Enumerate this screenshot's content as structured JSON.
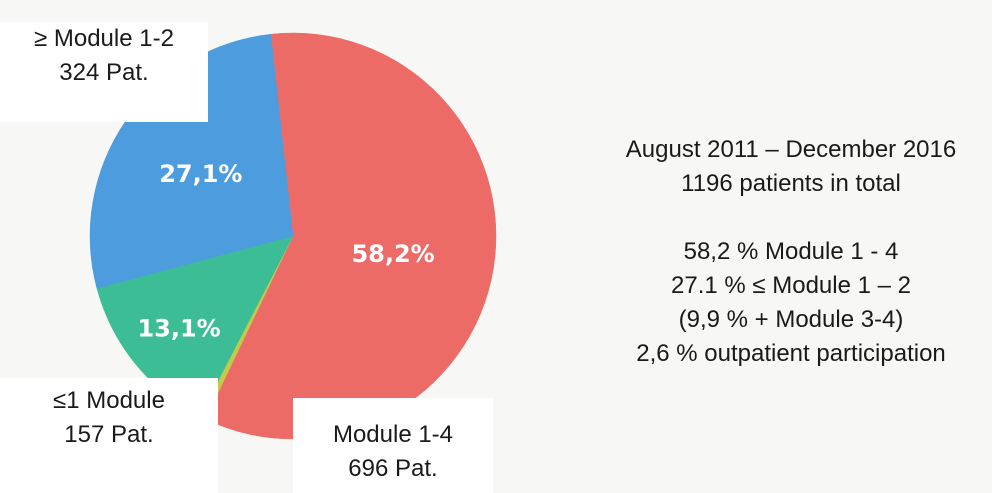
{
  "chart_data": {
    "type": "pie",
    "slices": [
      {
        "label": "Module 1-4",
        "patients": "696 Pat.",
        "value": 58.2,
        "display": "58,2%",
        "color": "#ec6b67"
      },
      {
        "label": "",
        "value": 0.5,
        "display": "",
        "color": "#c3c94a"
      },
      {
        "label": "≤1 Module",
        "patients": "157 Pat.",
        "value": 13.1,
        "display": "13,1%",
        "color": "#3dbd96"
      },
      {
        "label": "≥ Module 1-2",
        "patients": "324 Pat.",
        "value": 27.1,
        "display": "27,1%",
        "color": "#4d9cdd"
      }
    ]
  },
  "labels": {
    "top": {
      "line1": "≥ Module 1-2",
      "line2": "324 Pat."
    },
    "bottom_left": {
      "line1": "≤1 Module",
      "line2": "157 Pat."
    },
    "bottom_right": {
      "line1": "Module 1-4",
      "line2": "696 Pat."
    }
  },
  "summary": {
    "period": "August 2011 – December 2016",
    "total": "1196 patients in total",
    "line1": "58,2 % Module 1 - 4",
    "line2": "27.1 %  ≤ Module 1 – 2",
    "line3": "(9,9 % + Module 3-4)",
    "line4": "2,6 % outpatient participation"
  }
}
